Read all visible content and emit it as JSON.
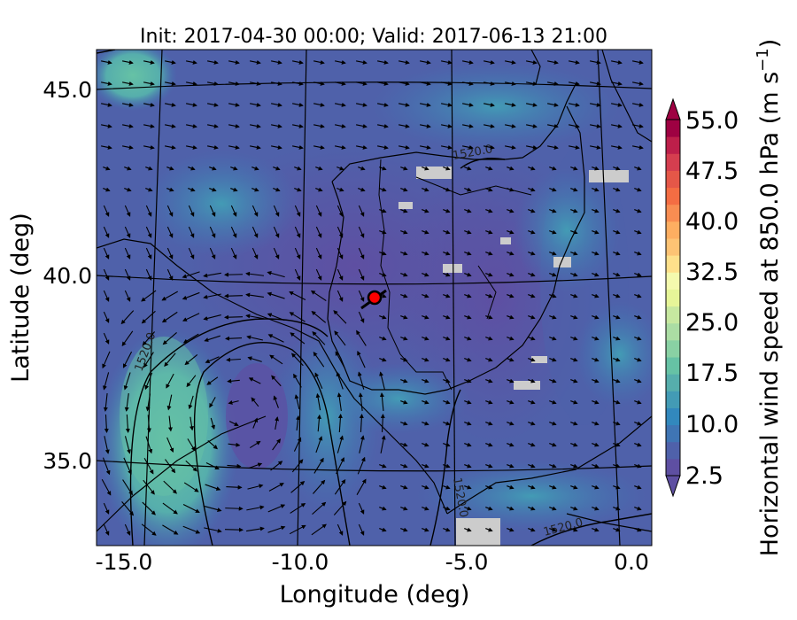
{
  "title": "Init: 2017-04-30 00:00; Valid: 2017-06-13 21:00",
  "axes": {
    "xlabel": "Longitude (deg)",
    "ylabel": "Latitude (deg)",
    "xticks": [
      "-15.0",
      "-10.0",
      "-5.0",
      "0.0"
    ],
    "yticks": [
      "45.0",
      "40.0",
      "35.0"
    ]
  },
  "colorbar": {
    "label": "Horizontal wind speed at 850.0 hPa (m s",
    "label_exp": "−1",
    "label_close": ")",
    "ticks": [
      "55.0",
      "47.5",
      "40.0",
      "32.5",
      "25.0",
      "17.5",
      "10.0",
      "2.5"
    ],
    "colors": [
      "#5e4fa2",
      "#4f61aa",
      "#3f75b4",
      "#3288bd",
      "#439bb5",
      "#56aeac",
      "#66c2a5",
      "#89d1a4",
      "#abdda4",
      "#c7e8a0",
      "#e6f598",
      "#f4faae",
      "#fee08b",
      "#fdc374",
      "#fdae61",
      "#f88d52",
      "#f46d43",
      "#e55748",
      "#d53e4f",
      "#bd1f4a",
      "#9e0142"
    ]
  },
  "contour_labels": [
    "1520.0",
    "1520.0",
    "1520.0",
    "1520.0"
  ],
  "marker": {
    "name": "point-of-interest",
    "color": "#ff0000",
    "lon": -7.7,
    "lat": 39.4
  }
}
